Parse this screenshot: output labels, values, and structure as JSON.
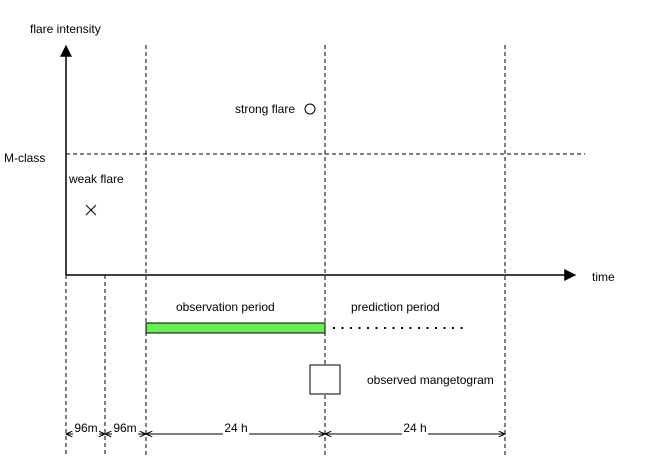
{
  "axes": {
    "y_label": "flare intensity",
    "x_label": "time",
    "threshold_label": "M-class"
  },
  "events": {
    "strong_flare_label": "strong flare",
    "weak_flare_label": "weak flare"
  },
  "periods": {
    "observation_label": "observation period",
    "prediction_label": "prediction period",
    "observation_color": "#66ee55"
  },
  "legend": {
    "magnetogram_label": "observed mangetogram"
  },
  "timeline": {
    "segments": [
      "96m",
      "96m",
      "24 h",
      "24 h"
    ]
  }
}
